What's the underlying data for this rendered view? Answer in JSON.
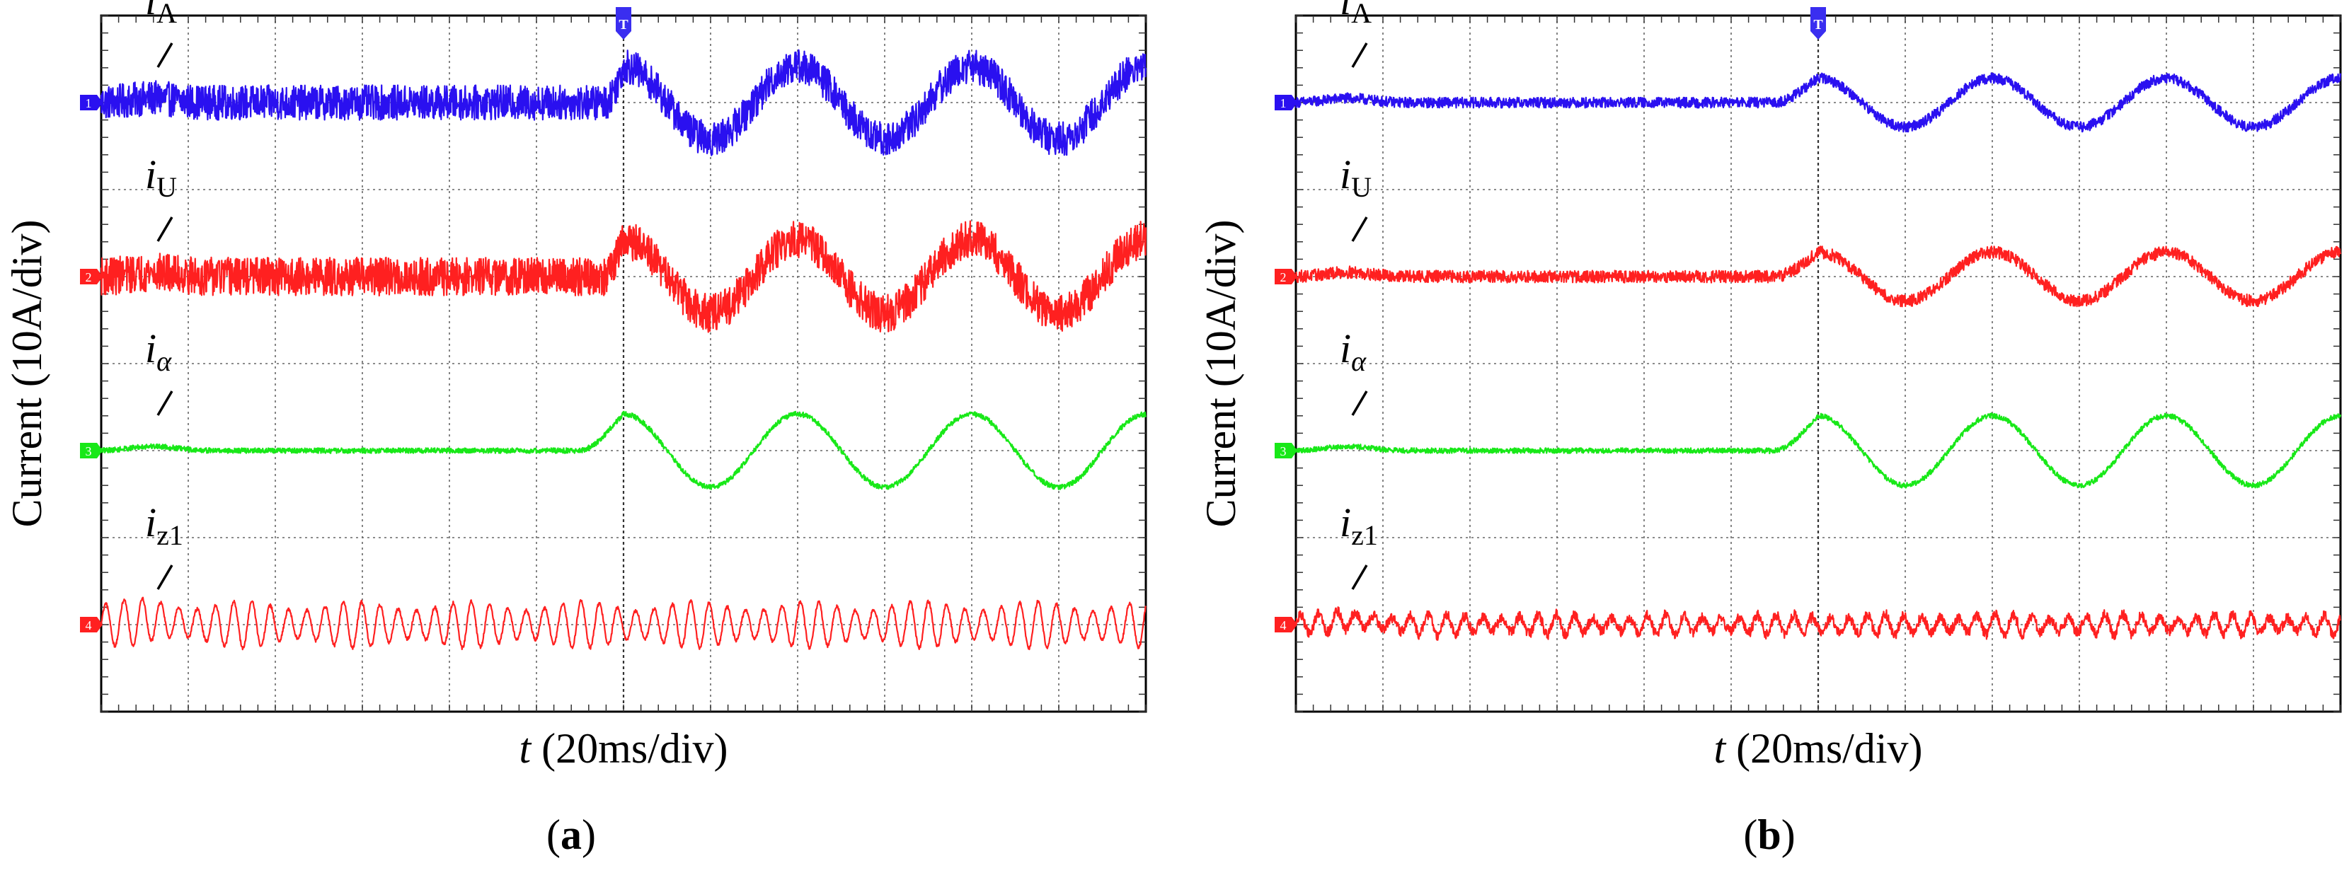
{
  "chart_data": [
    {
      "type": "line",
      "panel_label": "(a)",
      "title": "",
      "xlabel": {
        "var": "t",
        "rest": " (20ms/div)"
      },
      "ylabel": "Current (10A/div)",
      "divisions": {
        "x": 12,
        "y": 8
      },
      "xlim": [
        0,
        12
      ],
      "ylim": [
        0,
        8
      ],
      "trigger_div": 6,
      "trigger_label": "T",
      "series": [
        {
          "name": "iA",
          "label_base": "i",
          "label_sub": "A",
          "channel": "1",
          "color": "#2a10f0",
          "baseline_div": 7,
          "step_div": 5.8,
          "pre_amp_div": 0,
          "post_amp_div": 0.42,
          "period_div": 2,
          "peak_div": 6,
          "noise_div": 0.2,
          "harm_amp_div": 0,
          "harm_period_div": 0.3
        },
        {
          "name": "iU",
          "label_base": "i",
          "label_sub": "U",
          "channel": "2",
          "color": "#ff2020",
          "baseline_div": 5,
          "step_div": 5.8,
          "pre_amp_div": 0,
          "post_amp_div": 0.42,
          "period_div": 2,
          "peak_div": 6,
          "noise_div": 0.22,
          "harm_amp_div": 0,
          "harm_period_div": 0.3
        },
        {
          "name": "ialpha",
          "label_base": "i",
          "label_sub": "α",
          "channel": "3",
          "color": "#18e818",
          "baseline_div": 3,
          "step_div": 5.4,
          "pre_amp_div": 0,
          "post_amp_div": 0.42,
          "period_div": 2,
          "peak_div": 6,
          "noise_div": 0.03,
          "harm_amp_div": 0,
          "harm_period_div": 0.3
        },
        {
          "name": "iz1",
          "label_base": "i",
          "label_sub": "z1",
          "channel": "4",
          "color": "#ff2020",
          "baseline_div": 1,
          "step_div": 0,
          "pre_amp_div": 0,
          "post_amp_div": 0,
          "period_div": 2,
          "peak_div": 6,
          "noise_div": 0.02,
          "harm_amp_div": 0.27,
          "harm_period_div": 0.21
        }
      ]
    },
    {
      "type": "line",
      "panel_label": "(b)",
      "title": "",
      "xlabel": {
        "var": "t",
        "rest": " (20ms/div)"
      },
      "ylabel": "Current (10A/div)",
      "divisions": {
        "x": 12,
        "y": 8
      },
      "xlim": [
        0,
        12
      ],
      "ylim": [
        0,
        8
      ],
      "trigger_div": 6,
      "trigger_label": "T",
      "series": [
        {
          "name": "iA",
          "label_base": "i",
          "label_sub": "A",
          "channel": "1",
          "color": "#2a10f0",
          "baseline_div": 7,
          "step_div": 5.4,
          "pre_amp_div": 0,
          "post_amp_div": 0.28,
          "period_div": 2,
          "peak_div": 6,
          "noise_div": 0.06,
          "harm_amp_div": 0,
          "harm_period_div": 0.3
        },
        {
          "name": "iU",
          "label_base": "i",
          "label_sub": "U",
          "channel": "2",
          "color": "#ff2020",
          "baseline_div": 5,
          "step_div": 5.4,
          "pre_amp_div": 0,
          "post_amp_div": 0.28,
          "period_div": 2,
          "peak_div": 6,
          "noise_div": 0.07,
          "harm_amp_div": 0,
          "harm_period_div": 0.3
        },
        {
          "name": "ialpha",
          "label_base": "i",
          "label_sub": "α",
          "channel": "3",
          "color": "#18e818",
          "baseline_div": 3,
          "step_div": 5.4,
          "pre_amp_div": 0,
          "post_amp_div": 0.4,
          "period_div": 2,
          "peak_div": 6,
          "noise_div": 0.03,
          "harm_amp_div": 0,
          "harm_period_div": 0.3
        },
        {
          "name": "iz1",
          "label_base": "i",
          "label_sub": "z1",
          "channel": "4",
          "color": "#ff2020",
          "baseline_div": 1,
          "step_div": 0,
          "pre_amp_div": 0,
          "post_amp_div": 0,
          "period_div": 2,
          "peak_div": 6,
          "noise_div": 0.06,
          "harm_amp_div": 0.12,
          "harm_period_div": 0.21
        }
      ]
    }
  ]
}
